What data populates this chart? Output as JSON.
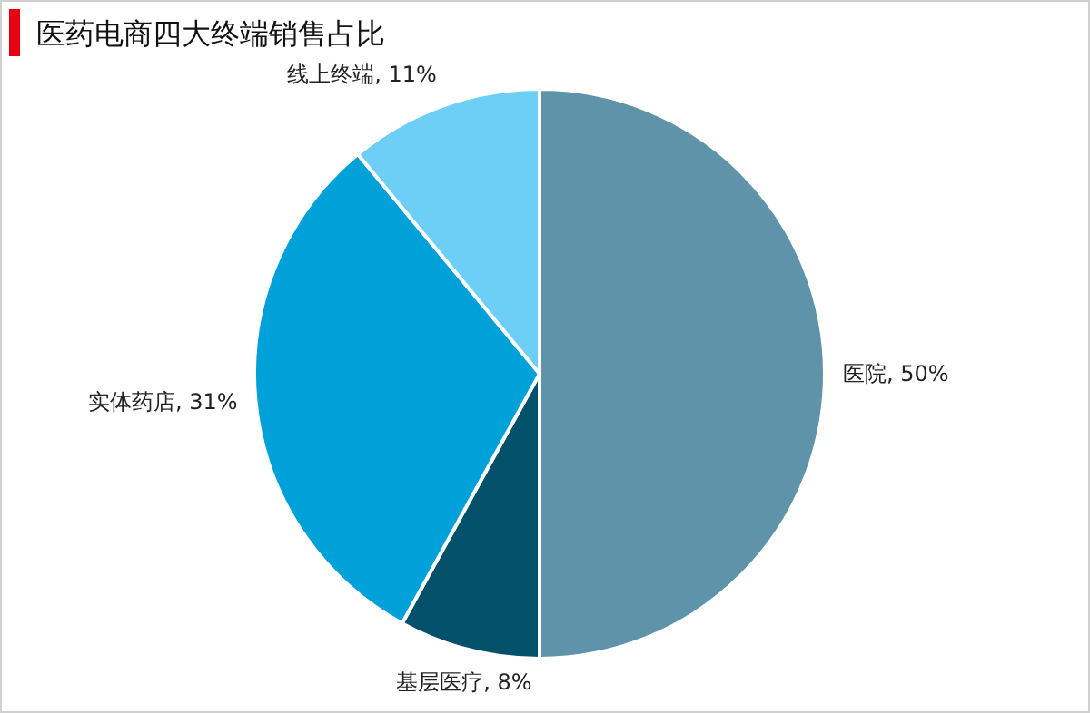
{
  "chart_data": {
    "type": "pie",
    "title": "医药电商四大终端销售占比",
    "categories": [
      "医院",
      "基层医疗",
      "实体药店",
      "线上终端"
    ],
    "values": [
      50,
      8,
      31,
      11
    ],
    "value_labels": [
      "50%",
      "8%",
      "31%",
      "11%"
    ],
    "colors": [
      "#5f93a9",
      "#03506b",
      "#00a0d9",
      "#6dcff6"
    ]
  }
}
